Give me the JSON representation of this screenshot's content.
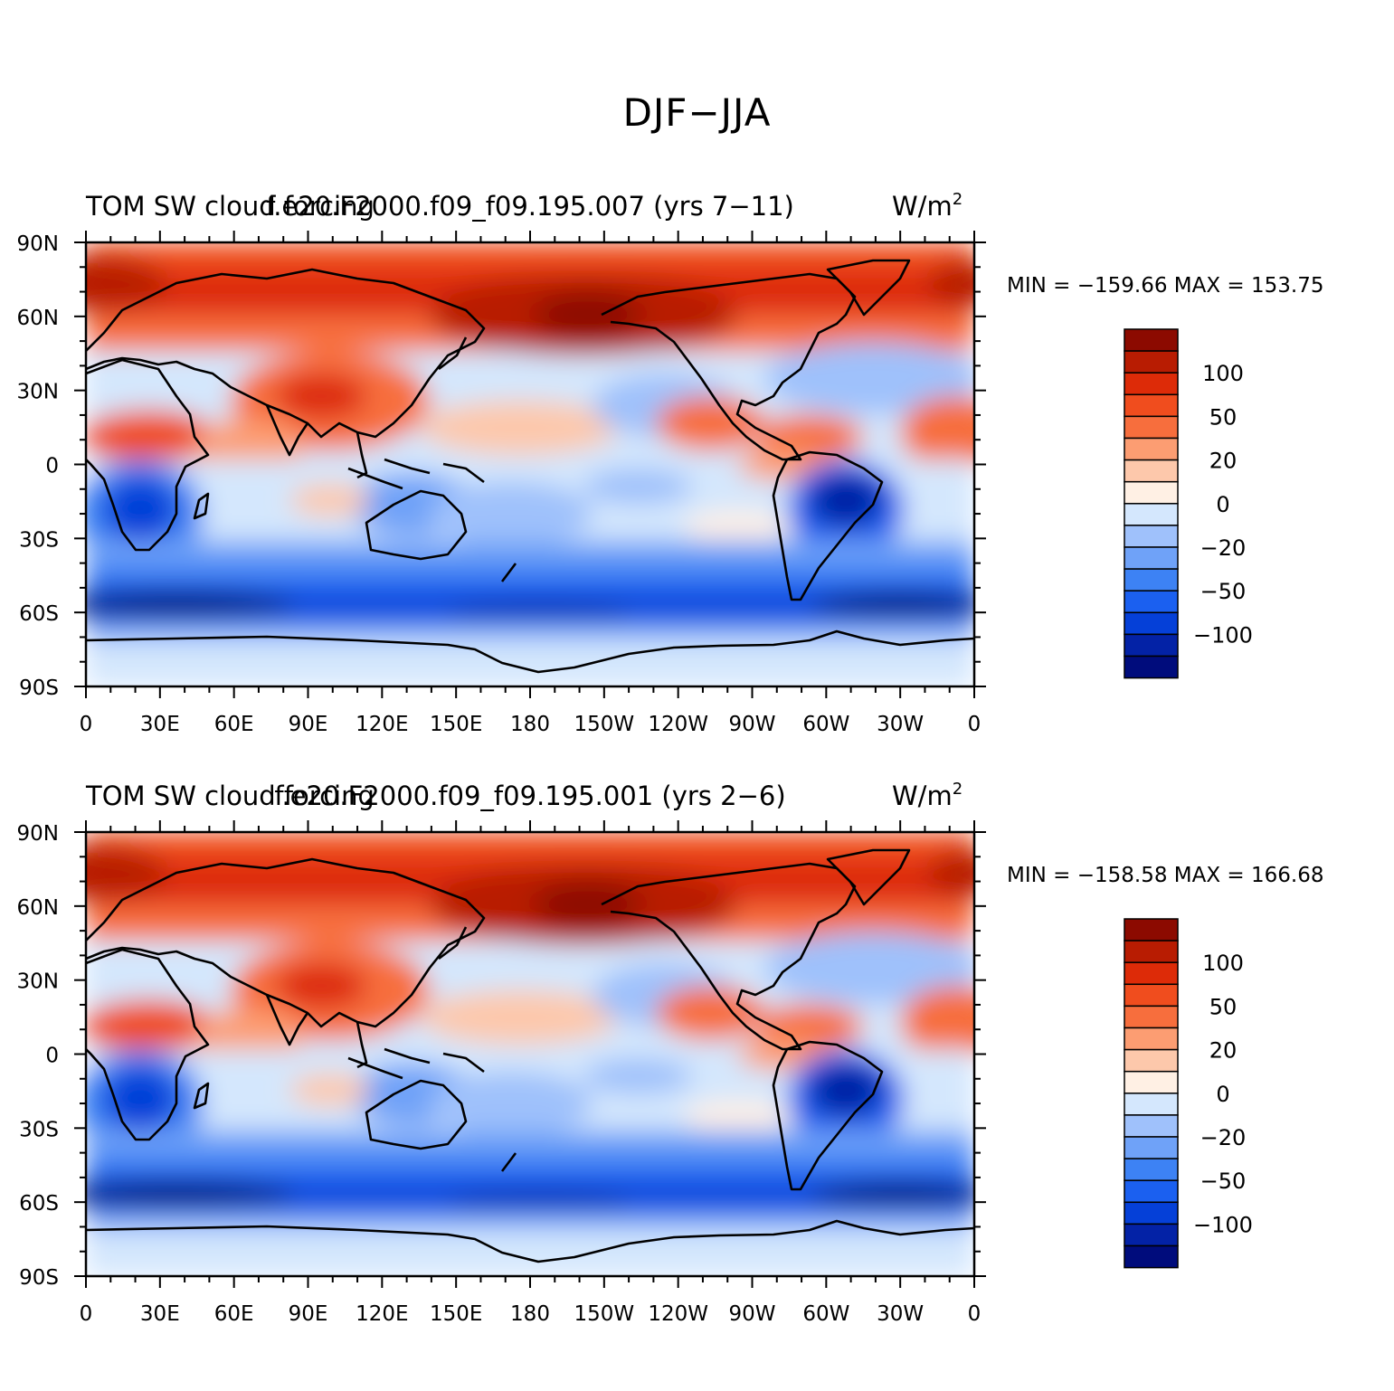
{
  "title": "DJF−JJA",
  "colormap": {
    "colors": [
      "#000c7c",
      "#0322a6",
      "#0540d8",
      "#1b60f0",
      "#3d82f4",
      "#6fa2f8",
      "#9fc1fb",
      "#d4e7fd",
      "#fff0e4",
      "#fdc8ab",
      "#fc9d72",
      "#f76e3d",
      "#f04d1e",
      "#dd2b08",
      "#b81c02",
      "#8c0a00"
    ],
    "label_values": [
      "100",
      "50",
      "20",
      "0",
      "−20",
      "−50",
      "−100"
    ]
  },
  "panels": [
    {
      "left_title": "TOM SW cloud forcing",
      "center_title": "f.e20.F2000.f09_f09.195.007 (yrs 7−11)",
      "units": "W/m",
      "units_sup": "2",
      "min_max": "MIN = −159.66  MAX = 153.75"
    },
    {
      "left_title": "TOM SW cloud forcing",
      "center_title": "f.e20.F2000.f09_f09.195.001 (yrs 2−6)",
      "units": "W/m",
      "units_sup": "2",
      "min_max": "MIN = −158.58  MAX = 166.68"
    }
  ],
  "axes": {
    "x_ticks": [
      "0",
      "30E",
      "60E",
      "90E",
      "120E",
      "150E",
      "180",
      "150W",
      "120W",
      "90W",
      "60W",
      "30W",
      "0"
    ],
    "y_ticks": [
      "90N",
      "60N",
      "30N",
      "0",
      "30S",
      "60S",
      "90S"
    ]
  }
}
